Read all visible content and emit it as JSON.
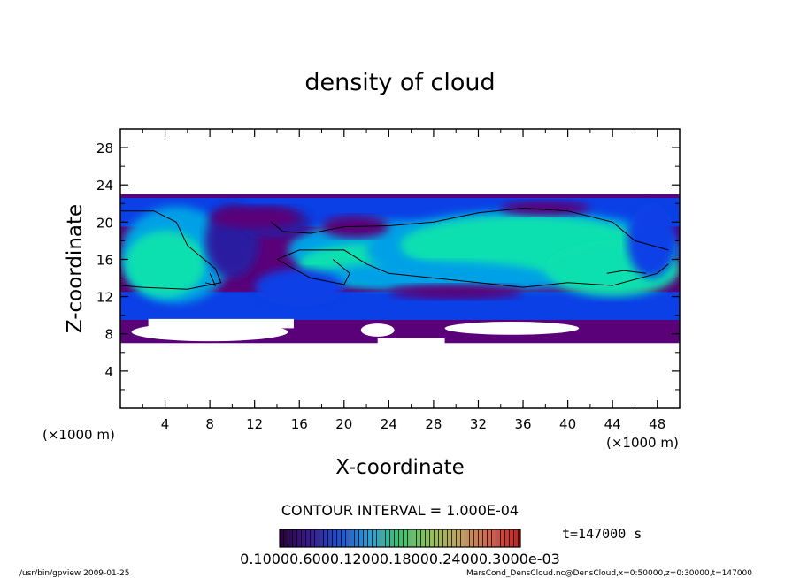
{
  "chart_data": {
    "type": "heatmap",
    "title": "density of cloud",
    "xlabel": "X-coordinate",
    "ylabel": "Z-coordinate",
    "x_unit": "(×1000 m)",
    "y_unit": "(×1000 m)",
    "xlim": [
      0,
      50
    ],
    "ylim": [
      0,
      30
    ],
    "x_ticks": [
      "4",
      "8",
      "12",
      "16",
      "20",
      "24",
      "28",
      "32",
      "36",
      "40",
      "44",
      "48"
    ],
    "y_ticks": [
      "4",
      "8",
      "12",
      "16",
      "20",
      "24",
      "28"
    ],
    "cloud_band_z": [
      7,
      23
    ],
    "contour_interval": "CONTOUR INTERVAL = 1.000E-04",
    "time_label": "t=147000 s",
    "colorbar_labels": [
      "0.1000e-6",
      "0.6000e-4",
      "0.1200e-3",
      "0.1800e-3",
      "0.2400e-3",
      "0.3000e-3"
    ],
    "colorbar_text": "0.10000.6000.12000.18000.24000.3000e-03",
    "footer_left": "/usr/bin/gpview  2009-01-25",
    "footer_right": "MarsCond_DensCloud.nc@DensCloud,x=0:50000,z=0:30000,t=147000",
    "colormap": [
      "#5a0078",
      "#2a1aa0",
      "#0a40e6",
      "#00a0e6",
      "#10e0b0",
      "#40f080",
      "#a0f060",
      "#e0e040",
      "#f09030",
      "#e03020"
    ]
  }
}
